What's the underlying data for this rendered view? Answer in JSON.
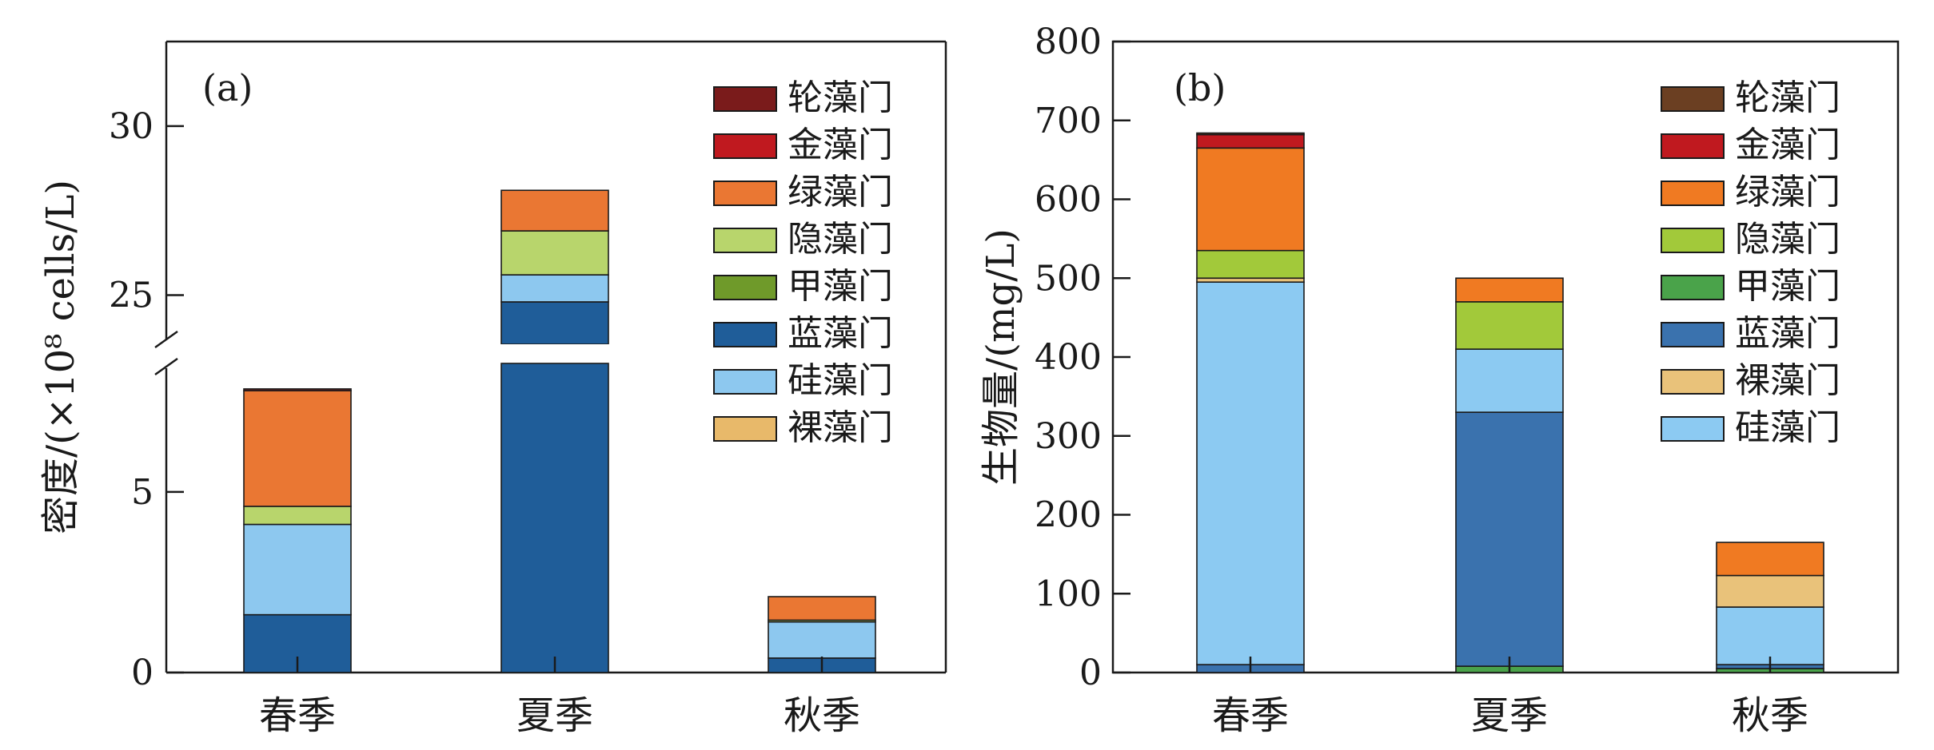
{
  "chart_data": [
    {
      "type": "bar",
      "stacked": true,
      "panel_label": "(a)",
      "ylabel": "密度/(×10⁸ cells/L)",
      "categories": [
        "春季",
        "夏季",
        "秋季"
      ],
      "axis_break": true,
      "y_ticks_lower": [
        "0",
        "5"
      ],
      "y_ticks_upper": [
        "25",
        "30"
      ],
      "ylim_lower": [
        0,
        8.6
      ],
      "ylim_upper": [
        23.5,
        32.5
      ],
      "legend": [
        "轮藻门",
        "金藻门",
        "绿藻门",
        "隐藻门",
        "甲藻门",
        "蓝藻门",
        "硅藻门",
        "裸藻门"
      ],
      "legend_position": "top-right",
      "stack_order": [
        "裸藻门",
        "蓝藻门",
        "硅藻门",
        "甲藻门",
        "隐藻门",
        "绿藻门",
        "金藻门",
        "轮藻门"
      ],
      "series": [
        {
          "name": "裸藻门",
          "values": [
            0,
            0,
            0
          ]
        },
        {
          "name": "蓝藻门",
          "values": [
            1.6,
            24.8,
            0.4
          ]
        },
        {
          "name": "硅藻门",
          "values": [
            2.5,
            0.8,
            1.0
          ]
        },
        {
          "name": "甲藻门",
          "values": [
            0,
            0,
            0
          ]
        },
        {
          "name": "隐藻门",
          "values": [
            0.5,
            1.3,
            0.05
          ]
        },
        {
          "name": "绿藻门",
          "values": [
            3.2,
            1.2,
            0.65
          ]
        },
        {
          "name": "金藻门",
          "values": [
            0,
            0,
            0
          ]
        },
        {
          "name": "轮藻门",
          "values": [
            0.05,
            0,
            0
          ]
        }
      ],
      "colors": {
        "轮藻门": "#7a1b1b",
        "金藻门": "#c0191f",
        "绿藻门": "#ea7733",
        "隐藻门": "#b8d56c",
        "甲藻门": "#6f9a2a",
        "蓝藻门": "#1f5d99",
        "硅藻门": "#8dc8ef",
        "裸藻门": "#e8b96a"
      }
    },
    {
      "type": "bar",
      "stacked": true,
      "panel_label": "(b)",
      "ylabel": "生物量/(mg/L)",
      "categories": [
        "春季",
        "夏季",
        "秋季"
      ],
      "ylim": [
        0,
        800
      ],
      "y_ticks": [
        "0",
        "100",
        "200",
        "300",
        "400",
        "500",
        "600",
        "700",
        "800"
      ],
      "legend": [
        "轮藻门",
        "金藻门",
        "绿藻门",
        "隐藻门",
        "甲藻门",
        "蓝藻门",
        "裸藻门",
        "硅藻门"
      ],
      "legend_position": "top-right",
      "stack_order": [
        "甲藻门",
        "蓝藻门",
        "硅藻门",
        "裸藻门",
        "隐藻门",
        "绿藻门",
        "金藻门",
        "轮藻门"
      ],
      "series": [
        {
          "name": "甲藻门",
          "values": [
            0,
            8,
            5
          ]
        },
        {
          "name": "蓝藻门",
          "values": [
            10,
            322,
            5
          ]
        },
        {
          "name": "硅藻门",
          "values": [
            485,
            80,
            73
          ]
        },
        {
          "name": "裸藻门",
          "values": [
            5,
            0,
            40
          ]
        },
        {
          "name": "隐藻门",
          "values": [
            35,
            60,
            0
          ]
        },
        {
          "name": "绿藻门",
          "values": [
            130,
            30,
            42
          ]
        },
        {
          "name": "金藻门",
          "values": [
            17,
            0,
            0
          ]
        },
        {
          "name": "轮藻门",
          "values": [
            2,
            0,
            0
          ]
        }
      ],
      "colors": {
        "轮藻门": "#6b3f22",
        "金藻门": "#c0191f",
        "绿藻门": "#f07a22",
        "隐藻门": "#a2c93a",
        "甲藻门": "#4aa34a",
        "蓝藻门": "#3a72ae",
        "裸藻门": "#e9c27a",
        "硅藻门": "#8ccaf2"
      }
    }
  ]
}
